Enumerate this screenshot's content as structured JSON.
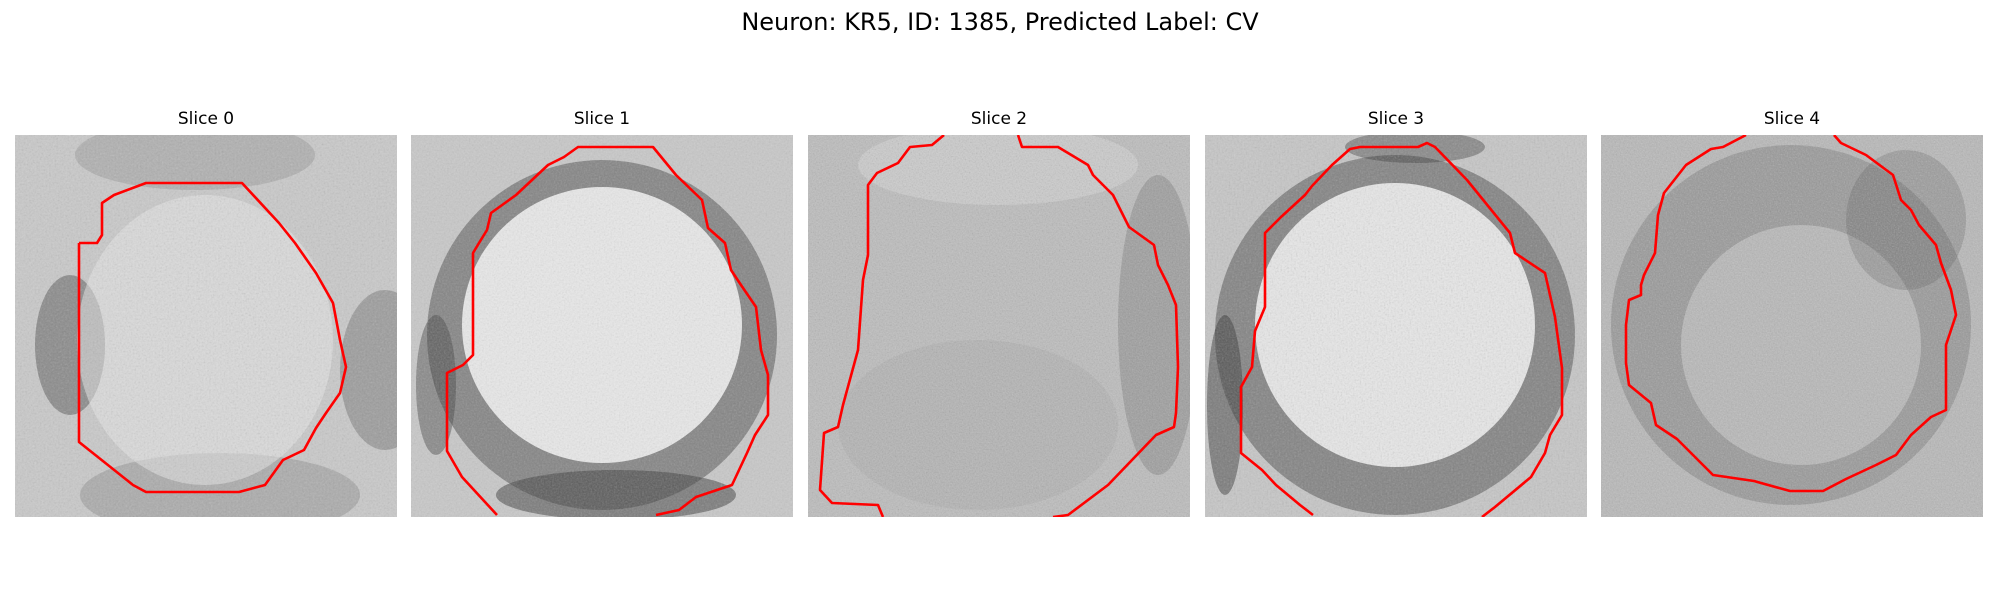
{
  "figure": {
    "title": "Neuron: KR5, ID: 1385, Predicted Label: CV"
  },
  "panels": [
    {
      "title": "Slice 0",
      "image_description": "grayscale neuron slice with red contour"
    },
    {
      "title": "Slice 1",
      "image_description": "grayscale neuron slice with red contour"
    },
    {
      "title": "Slice 2",
      "image_description": "grayscale neuron slice with red contour"
    },
    {
      "title": "Slice 3",
      "image_description": "grayscale neuron slice with red contour"
    },
    {
      "title": "Slice 4",
      "image_description": "grayscale neuron slice with red contour"
    }
  ],
  "colors": {
    "contour": "#ff0000"
  }
}
